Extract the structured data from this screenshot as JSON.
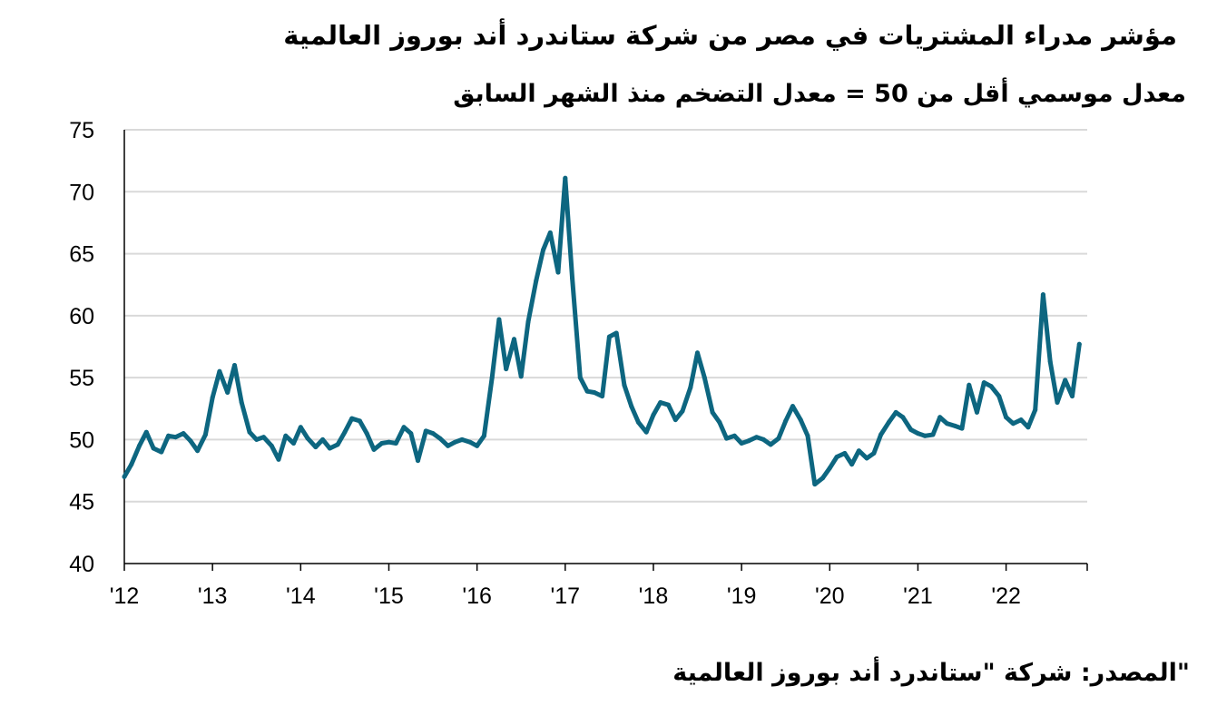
{
  "chart_data": {
    "type": "line",
    "title": "مؤشر مدراء المشتريات في مصر من شركة ستاندرد أند بوروز العالمية",
    "subtitle": "معدل موسمي أقل من 50 = معدل التضخم منذ الشهر السابق",
    "source": "\"المصدر:  شركة \"ستاندرد أند بوروز العالمية",
    "xlabel": "",
    "ylabel": "",
    "ylim": [
      40,
      75
    ],
    "yticks": [
      "75",
      "70",
      "65",
      "60",
      "55",
      "50",
      "45",
      "40"
    ],
    "xticks": [
      "'12",
      "'13",
      "'14",
      "'15",
      "'16",
      "'17",
      "'18",
      "'19",
      "'20",
      "'21",
      "'22"
    ],
    "xlim": [
      2012.0,
      2022.92
    ],
    "grid": "horizontal",
    "line_color": "#0d6680",
    "series": [
      {
        "points": [
          [
            2012.0,
            47.0
          ],
          [
            2012.08,
            48.0
          ],
          [
            2012.17,
            49.5
          ],
          [
            2012.25,
            50.6
          ],
          [
            2012.33,
            49.3
          ],
          [
            2012.42,
            49.0
          ],
          [
            2012.5,
            50.3
          ],
          [
            2012.58,
            50.2
          ],
          [
            2012.67,
            50.5
          ],
          [
            2012.75,
            49.9
          ],
          [
            2012.83,
            49.1
          ],
          [
            2012.92,
            50.4
          ],
          [
            2013.0,
            53.4
          ],
          [
            2013.08,
            55.5
          ],
          [
            2013.17,
            53.8
          ],
          [
            2013.25,
            56.0
          ],
          [
            2013.33,
            53.0
          ],
          [
            2013.42,
            50.6
          ],
          [
            2013.5,
            50.0
          ],
          [
            2013.58,
            50.2
          ],
          [
            2013.67,
            49.5
          ],
          [
            2013.75,
            48.4
          ],
          [
            2013.83,
            50.3
          ],
          [
            2013.92,
            49.7
          ],
          [
            2014.0,
            51.0
          ],
          [
            2014.08,
            50.1
          ],
          [
            2014.17,
            49.4
          ],
          [
            2014.25,
            50.0
          ],
          [
            2014.33,
            49.3
          ],
          [
            2014.42,
            49.6
          ],
          [
            2014.5,
            50.6
          ],
          [
            2014.58,
            51.7
          ],
          [
            2014.67,
            51.5
          ],
          [
            2014.75,
            50.5
          ],
          [
            2014.83,
            49.2
          ],
          [
            2014.92,
            49.7
          ],
          [
            2015.0,
            49.8
          ],
          [
            2015.08,
            49.7
          ],
          [
            2015.17,
            51.0
          ],
          [
            2015.25,
            50.5
          ],
          [
            2015.33,
            48.3
          ],
          [
            2015.42,
            50.7
          ],
          [
            2015.5,
            50.5
          ],
          [
            2015.58,
            50.1
          ],
          [
            2015.67,
            49.5
          ],
          [
            2015.75,
            49.8
          ],
          [
            2015.83,
            50.0
          ],
          [
            2015.92,
            49.8
          ],
          [
            2016.0,
            49.5
          ],
          [
            2016.08,
            50.3
          ],
          [
            2016.17,
            55.0
          ],
          [
            2016.25,
            59.7
          ],
          [
            2016.33,
            55.7
          ],
          [
            2016.42,
            58.1
          ],
          [
            2016.5,
            55.1
          ],
          [
            2016.58,
            59.5
          ],
          [
            2016.67,
            62.8
          ],
          [
            2016.75,
            65.3
          ],
          [
            2016.83,
            66.7
          ],
          [
            2016.92,
            63.5
          ],
          [
            2017.0,
            71.1
          ],
          [
            2017.08,
            63.0
          ],
          [
            2017.17,
            55.0
          ],
          [
            2017.25,
            53.9
          ],
          [
            2017.33,
            53.8
          ],
          [
            2017.42,
            53.5
          ],
          [
            2017.5,
            58.3
          ],
          [
            2017.58,
            58.6
          ],
          [
            2017.67,
            54.4
          ],
          [
            2017.75,
            52.7
          ],
          [
            2017.83,
            51.4
          ],
          [
            2017.92,
            50.6
          ],
          [
            2018.0,
            52.0
          ],
          [
            2018.08,
            53.0
          ],
          [
            2018.17,
            52.8
          ],
          [
            2018.25,
            51.6
          ],
          [
            2018.33,
            52.3
          ],
          [
            2018.42,
            54.2
          ],
          [
            2018.5,
            57.0
          ],
          [
            2018.58,
            55.0
          ],
          [
            2018.67,
            52.2
          ],
          [
            2018.75,
            51.4
          ],
          [
            2018.83,
            50.1
          ],
          [
            2018.92,
            50.3
          ],
          [
            2019.0,
            49.7
          ],
          [
            2019.08,
            49.9
          ],
          [
            2019.17,
            50.2
          ],
          [
            2019.25,
            50.0
          ],
          [
            2019.33,
            49.6
          ],
          [
            2019.42,
            50.1
          ],
          [
            2019.5,
            51.5
          ],
          [
            2019.58,
            52.7
          ],
          [
            2019.67,
            51.6
          ],
          [
            2019.75,
            50.3
          ],
          [
            2019.83,
            46.4
          ],
          [
            2019.92,
            46.9
          ],
          [
            2020.0,
            47.7
          ],
          [
            2020.08,
            48.6
          ],
          [
            2020.17,
            48.9
          ],
          [
            2020.25,
            48.0
          ],
          [
            2020.33,
            49.1
          ],
          [
            2020.42,
            48.5
          ],
          [
            2020.5,
            48.9
          ],
          [
            2020.58,
            50.4
          ],
          [
            2020.67,
            51.4
          ],
          [
            2020.75,
            52.2
          ],
          [
            2020.83,
            51.8
          ],
          [
            2020.92,
            50.8
          ],
          [
            2021.0,
            50.5
          ],
          [
            2021.08,
            50.3
          ],
          [
            2021.17,
            50.4
          ],
          [
            2021.25,
            51.8
          ],
          [
            2021.33,
            51.3
          ],
          [
            2021.42,
            51.1
          ],
          [
            2021.5,
            50.9
          ],
          [
            2021.58,
            54.4
          ],
          [
            2021.67,
            52.2
          ],
          [
            2021.75,
            54.6
          ],
          [
            2021.83,
            54.3
          ],
          [
            2021.92,
            53.5
          ],
          [
            2022.0,
            51.8
          ],
          [
            2022.08,
            51.3
          ],
          [
            2022.17,
            51.6
          ],
          [
            2022.25,
            51.0
          ],
          [
            2022.33,
            52.4
          ],
          [
            2022.42,
            61.7
          ],
          [
            2022.5,
            56.3
          ],
          [
            2022.58,
            53.0
          ],
          [
            2022.67,
            54.8
          ],
          [
            2022.75,
            53.5
          ],
          [
            2022.83,
            57.7
          ]
        ]
      }
    ]
  }
}
